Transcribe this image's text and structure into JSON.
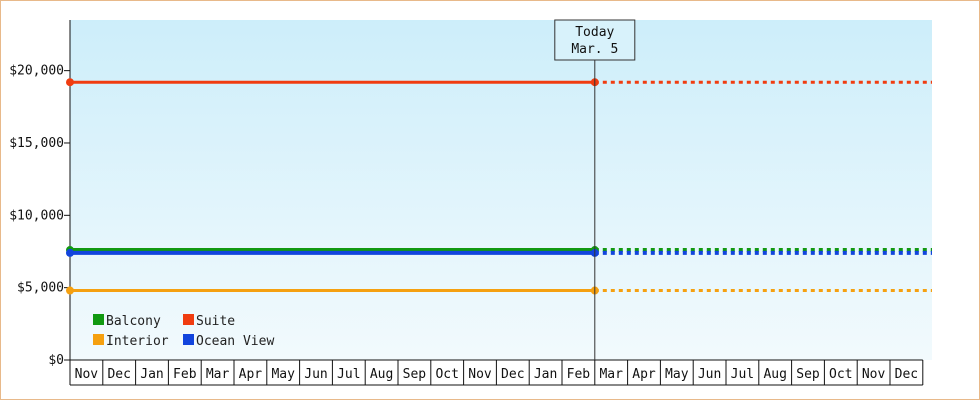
{
  "chart_data": {
    "type": "line",
    "title": "",
    "xlabel": "",
    "ylabel": "",
    "ylim": [
      0,
      23500
    ],
    "yticks": [
      {
        "value": 0,
        "label": "$0"
      },
      {
        "value": 5000,
        "label": "$5,000"
      },
      {
        "value": 10000,
        "label": "$10,000"
      },
      {
        "value": 15000,
        "label": "$15,000"
      },
      {
        "value": 20000,
        "label": "$20,000"
      }
    ],
    "months": [
      "Nov",
      "Dec",
      "Jan",
      "Feb",
      "Mar",
      "Apr",
      "May",
      "Jun",
      "Jul",
      "Aug",
      "Sep",
      "Oct",
      "Nov",
      "Dec",
      "Jan",
      "Feb",
      "Mar",
      "Apr",
      "May",
      "Jun",
      "Jul",
      "Aug",
      "Sep",
      "Oct",
      "Nov",
      "Dec"
    ],
    "today": {
      "line1": "Today",
      "line2": "Mar. 5"
    },
    "today_month_index": 16,
    "grid": false,
    "legend_position": "bottom-left",
    "background_gradient": [
      "#cdeefa",
      "#f2fafd"
    ],
    "series": [
      {
        "name": "Suite",
        "color": "#f03c10",
        "value": 19200,
        "forecast_value": 19200
      },
      {
        "name": "Balcony",
        "color": "#119911",
        "value": 7600,
        "forecast_value": 7600
      },
      {
        "name": "Ocean View",
        "color": "#1144dd",
        "value": 7400,
        "forecast_value": 7400
      },
      {
        "name": "Interior",
        "color": "#f5a010",
        "value": 4800,
        "forecast_value": 4800
      }
    ],
    "legend": [
      {
        "name": "Balcony",
        "color": "#119911"
      },
      {
        "name": "Suite",
        "color": "#f03c10"
      },
      {
        "name": "Interior",
        "color": "#f5a010"
      },
      {
        "name": "Ocean View",
        "color": "#1144dd"
      }
    ]
  }
}
